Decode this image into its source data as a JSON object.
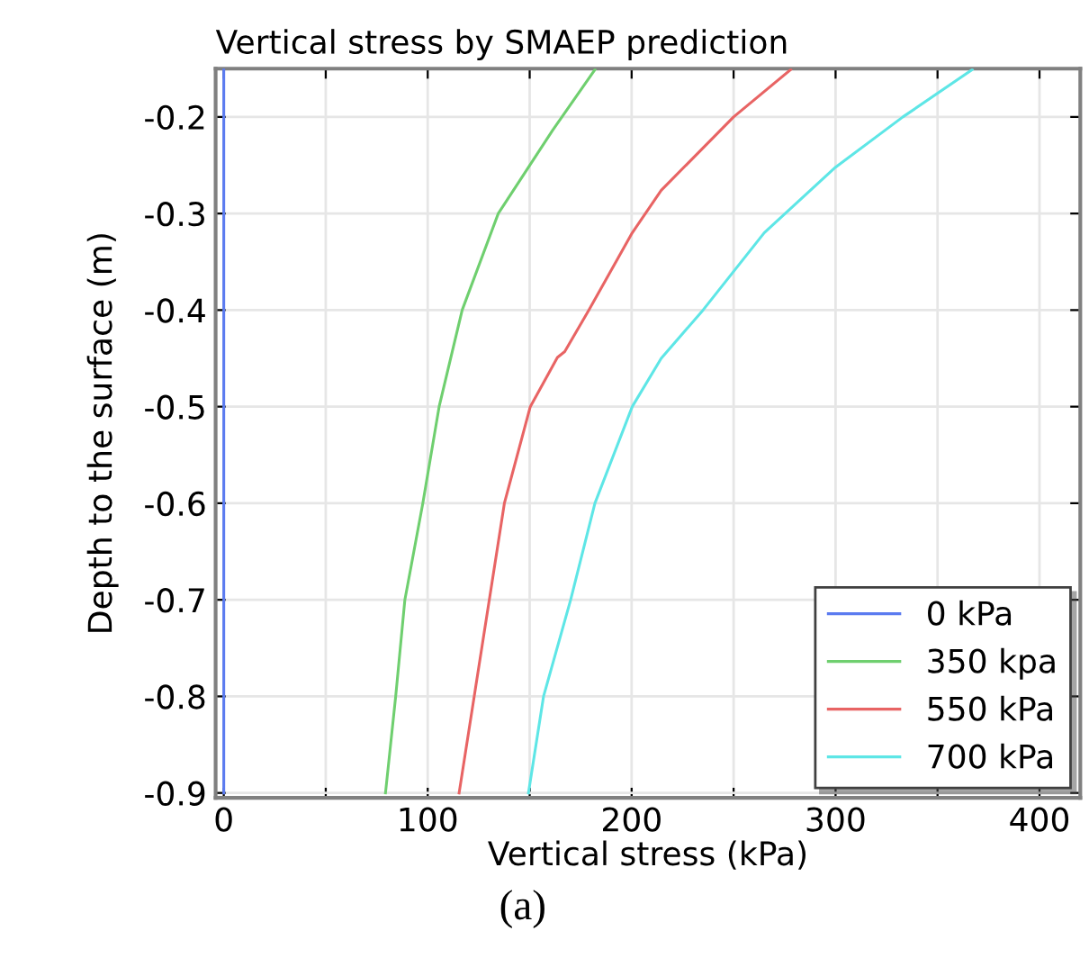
{
  "chart_data": {
    "type": "line",
    "title": "Vertical stress by SMAEP prediction",
    "xlabel": "Vertical stress (kPa)",
    "ylabel": "Depth to the surface (m)",
    "annotations": [
      "(a)"
    ],
    "series": [
      {
        "name": "0 kPa",
        "color": "#5b7bf0",
        "x": [
          0,
          0
        ],
        "values": [
          -0.9,
          -0.15
        ]
      },
      {
        "name": "350 kpa",
        "color": "#6fcf6f",
        "x": [
          79.3,
          84.3,
          88.8,
          97.6,
          105.6,
          116.9,
          134.6,
          161.2,
          182
        ],
        "values": [
          -0.9,
          -0.8,
          -0.7,
          -0.6,
          -0.5,
          -0.4,
          -0.3,
          -0.214,
          -0.151
        ]
      },
      {
        "name": "550 kPa",
        "color": "#e86464",
        "x": [
          115.4,
          122.8,
          130.2,
          137.6,
          150.3,
          163.6,
          167.2,
          179,
          200.3,
          214.5,
          250,
          278
        ],
        "values": [
          -0.9,
          -0.8,
          -0.7,
          -0.6,
          -0.5,
          -0.449,
          -0.443,
          -0.4,
          -0.32,
          -0.276,
          -0.2,
          -0.151
        ]
      },
      {
        "name": "700 kPa",
        "color": "#5ee6e6",
        "x": [
          149.4,
          156.8,
          170.1,
          182,
          200.3,
          214.5,
          235,
          265,
          300,
          333,
          367
        ],
        "values": [
          -0.9,
          -0.8,
          -0.7,
          -0.6,
          -0.5,
          -0.45,
          -0.4,
          -0.32,
          -0.252,
          -0.2,
          -0.151
        ]
      }
    ],
    "xlim": [
      -4,
      420
    ],
    "ylim": [
      -0.905,
      -0.15
    ],
    "xticks": [
      0,
      {
        "value": 50,
        "label": null
      },
      100,
      {
        "value": 150,
        "label": null
      },
      200,
      {
        "value": 250,
        "label": null
      },
      300,
      {
        "value": 350,
        "label": null
      },
      400
    ],
    "yticks": [
      {
        "value": -0.2,
        "label": "-0.2"
      },
      {
        "value": -0.3,
        "label": "-0.3"
      },
      {
        "value": -0.4,
        "label": "-0.4"
      },
      {
        "value": -0.5,
        "label": "-0.5"
      },
      {
        "value": -0.6,
        "label": "-0.6"
      },
      {
        "value": -0.7,
        "label": "-0.7"
      },
      {
        "value": -0.8,
        "label": "-0.8"
      },
      {
        "value": -0.9,
        "label": "-0.9"
      }
    ],
    "grid": true,
    "legend": "lower right",
    "line_style": "solid",
    "marker": "none"
  }
}
